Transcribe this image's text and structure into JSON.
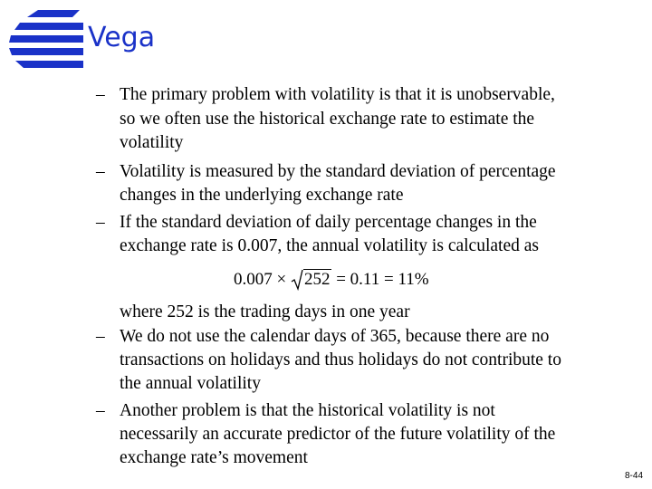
{
  "header": {
    "title": "Vega"
  },
  "bullets": [
    {
      "lines": [
        "The primary problem with volatility is that it is unobservable,",
        "so we often use the historical exchange rate to estimate the",
        "volatility"
      ]
    },
    {
      "lines": [
        "Volatility is measured by the standard deviation of percentage",
        "changes in the underlying exchange rate"
      ]
    },
    {
      "lines": [
        "If the standard deviation of daily percentage changes in the",
        "exchange rate is 0.007, the annual volatility is calculated as"
      ],
      "continuation": "where 252 is the trading days in one year"
    },
    {
      "lines": [
        "We do not use the calendar days of 365, because there are no",
        "transactions on holidays and thus holidays do not contribute to",
        "the annual volatility"
      ]
    },
    {
      "lines": [
        "Another problem is that the historical volatility is not",
        "necessarily an accurate predictor of the future volatility of the",
        "exchange rate’s movement"
      ]
    }
  ],
  "formula": {
    "left": "0.007",
    "operator": "×",
    "radicand": "252",
    "right": "= 0.11 = 11%"
  },
  "footer": {
    "page_number": "8-44"
  }
}
